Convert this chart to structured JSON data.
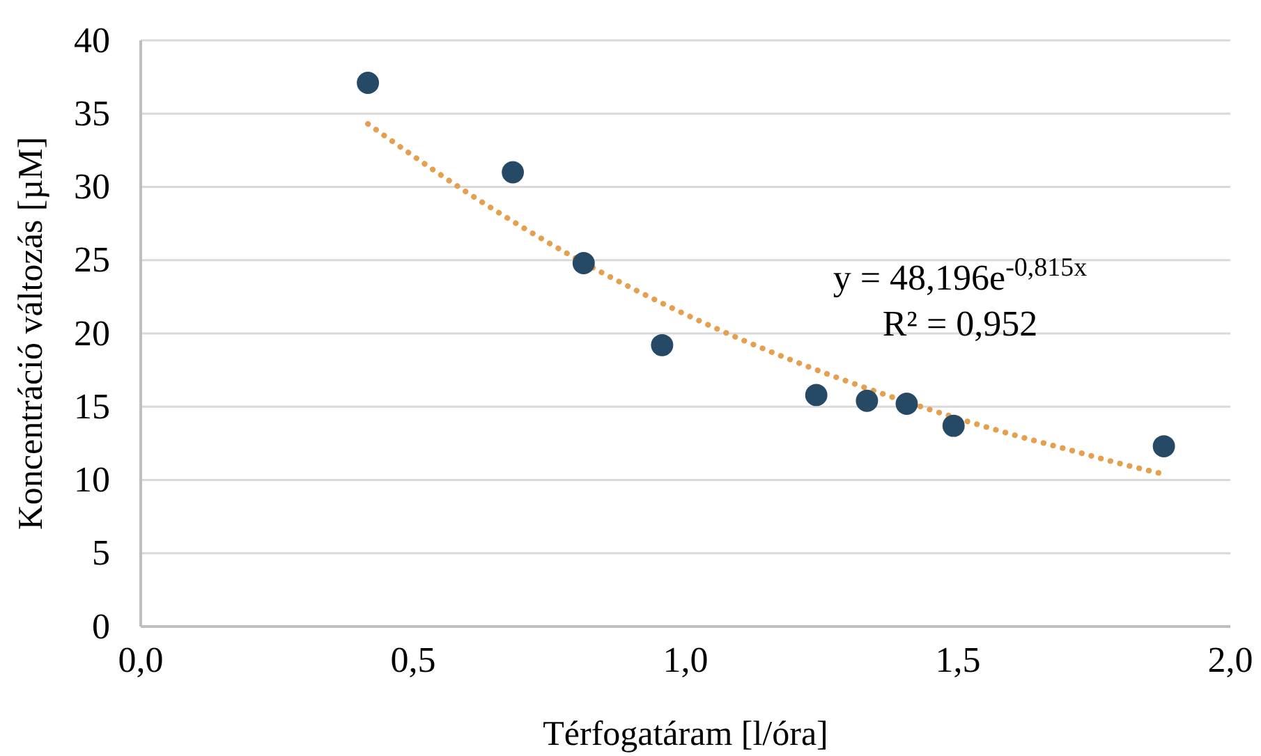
{
  "chart_data": {
    "type": "scatter",
    "xlabel": "Térfogatáram [l/óra]",
    "ylabel": "Koncentráció változás [µM]",
    "xlim": [
      0,
      2
    ],
    "xticks": [
      {
        "value": 0,
        "label": "0,0"
      },
      {
        "value": 0.5,
        "label": "0,5"
      },
      {
        "value": 1,
        "label": "1,0"
      },
      {
        "value": 1.5,
        "label": "1,5"
      },
      {
        "value": 2,
        "label": "2,0"
      }
    ],
    "ylim": [
      0,
      40
    ],
    "yticks": [
      0,
      5,
      10,
      15,
      20,
      25,
      30,
      35,
      40
    ],
    "grid": "y",
    "marker": "circle",
    "series": [
      {
        "color": "#264a66",
        "x": [
          0.417,
          0.683,
          0.813,
          0.957,
          1.24,
          1.333,
          1.406,
          1.492,
          1.878
        ],
        "values": [
          37.1,
          31.0,
          24.8,
          19.2,
          15.8,
          15.4,
          15.2,
          13.7,
          12.3
        ]
      },
      {
        "type": "line",
        "color": "#e5a04f",
        "line_style": "dotted",
        "marker": "none",
        "x": [
          0.417,
          0.6,
          0.8,
          1.0,
          1.2,
          1.4,
          1.6,
          1.7,
          1.8,
          1.878
        ],
        "values": [
          34.3,
          29.6,
          25.1,
          21.3,
          18.1,
          15.4,
          13.1,
          12.1,
          11.1,
          10.4
        ]
      }
    ],
    "annotations": [
      "y = 48,196e$^{-0,815x}$",
      "R² = 0,952"
    ]
  }
}
